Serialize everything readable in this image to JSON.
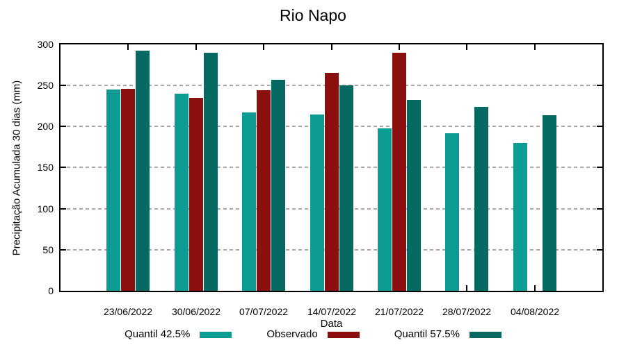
{
  "chart_data": {
    "type": "bar",
    "title": "Rio Napo",
    "xlabel": "Data",
    "ylabel": "Precipitação Acumulada 30 dias (mm)",
    "ylim": [
      0,
      300
    ],
    "yticks": [
      0,
      50,
      100,
      150,
      200,
      250,
      300
    ],
    "grid": "horizontal dotted gridlines at labeled yticks",
    "legend_position": "bottom",
    "axis_color": "#000000",
    "gridline_color": "#a8a8a8",
    "categories": [
      "23/06/2022",
      "30/06/2022",
      "07/07/2022",
      "14/07/2022",
      "21/07/2022",
      "28/07/2022",
      "04/08/2022"
    ],
    "series": [
      {
        "name": "Quantil 42.5%",
        "color": "#0D9C94",
        "values": [
          245,
          240,
          217,
          215,
          198,
          192,
          180
        ]
      },
      {
        "name": "Observado",
        "color": "#8C0F0F",
        "values": [
          246,
          235,
          244,
          265,
          290,
          null,
          null
        ]
      },
      {
        "name": "Quantil 57.5%",
        "color": "#066A62",
        "values": [
          292,
          290,
          257,
          250,
          232,
          224,
          214
        ]
      }
    ]
  }
}
